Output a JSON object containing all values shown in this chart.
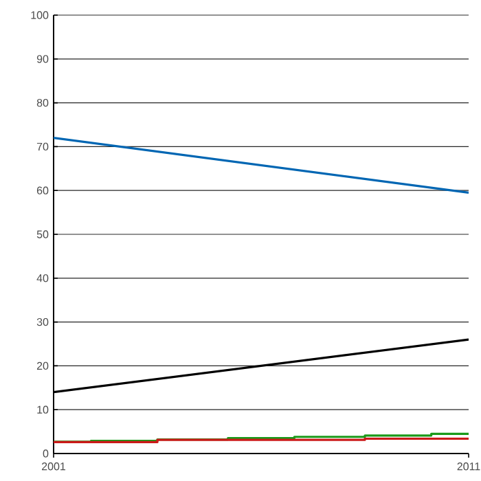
{
  "chart_data": {
    "type": "line",
    "x": [
      2001,
      2011
    ],
    "xlim": [
      2001,
      2011
    ],
    "xticks": [
      2001,
      2011
    ],
    "ylim": [
      0,
      100
    ],
    "yticks": [
      0,
      10,
      20,
      30,
      40,
      50,
      60,
      70,
      80,
      90,
      100
    ],
    "grid": "y",
    "marker": "none",
    "line_style": "solid",
    "series": [
      {
        "color": "#0066b3",
        "values": [
          72,
          59.5
        ]
      },
      {
        "color": "#000000",
        "values": [
          14,
          26
        ]
      },
      {
        "type": "step",
        "color": "#1a9a1a",
        "x": [
          2001,
          2001.9,
          2003.5,
          2005.2,
          2006.8,
          2008.5,
          2010.1,
          2011
        ],
        "values": [
          2.7,
          2.9,
          3.2,
          3.5,
          3.8,
          4.1,
          4.5,
          4.5
        ]
      },
      {
        "type": "step",
        "color": "#cc1a1a",
        "x": [
          2001,
          2003.5,
          2008.5,
          2011
        ],
        "values": [
          2.6,
          3.1,
          3.4,
          3.4
        ]
      }
    ]
  }
}
